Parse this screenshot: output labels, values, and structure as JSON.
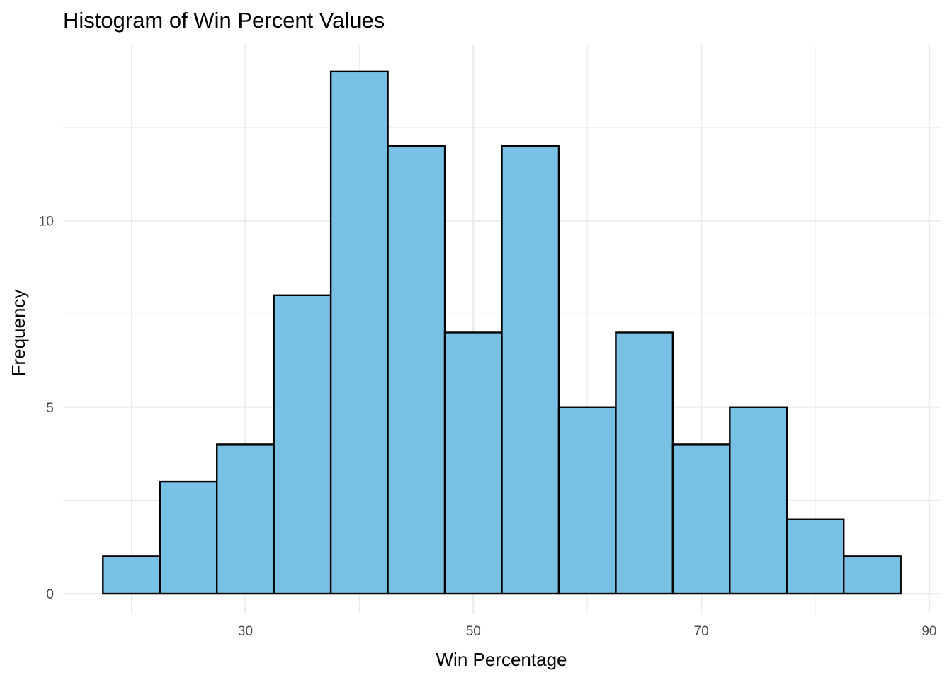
{
  "chart_data": {
    "type": "histogram",
    "title": "Histogram of Win Percent Values",
    "xlabel": "Win Percentage",
    "ylabel": "Frequency",
    "bin_width": 5,
    "bins": [
      {
        "start": 17.5,
        "end": 22.5,
        "count": 1
      },
      {
        "start": 22.5,
        "end": 27.5,
        "count": 3
      },
      {
        "start": 27.5,
        "end": 32.5,
        "count": 4
      },
      {
        "start": 32.5,
        "end": 37.5,
        "count": 8
      },
      {
        "start": 37.5,
        "end": 42.5,
        "count": 14
      },
      {
        "start": 42.5,
        "end": 47.5,
        "count": 12
      },
      {
        "start": 47.5,
        "end": 52.5,
        "count": 7
      },
      {
        "start": 52.5,
        "end": 57.5,
        "count": 12
      },
      {
        "start": 57.5,
        "end": 62.5,
        "count": 5
      },
      {
        "start": 62.5,
        "end": 67.5,
        "count": 7
      },
      {
        "start": 67.5,
        "end": 72.5,
        "count": 4
      },
      {
        "start": 72.5,
        "end": 77.5,
        "count": 5
      },
      {
        "start": 77.5,
        "end": 82.5,
        "count": 2
      },
      {
        "start": 82.5,
        "end": 87.5,
        "count": 1
      }
    ],
    "xlim": [
      14.0,
      91.0
    ],
    "ylim": [
      -0.55,
      14.7
    ],
    "x_major_ticks": [
      30,
      50,
      70,
      90
    ],
    "x_minor_ticks": [
      20,
      40,
      60,
      80
    ],
    "y_major_ticks": [
      0,
      5,
      10
    ],
    "y_minor_ticks": [
      2.5,
      7.5,
      12.5
    ],
    "x_tick_labels": [
      "30",
      "50",
      "70",
      "90"
    ],
    "y_tick_labels": [
      "0",
      "5",
      "10"
    ],
    "grid": true,
    "legend": "none",
    "colors": {
      "bar_fill": "#79c1e4",
      "bar_outline": "#000000",
      "grid": "#ebebeb",
      "tick_text": "#4d4d4d",
      "background": "#ffffff"
    }
  }
}
